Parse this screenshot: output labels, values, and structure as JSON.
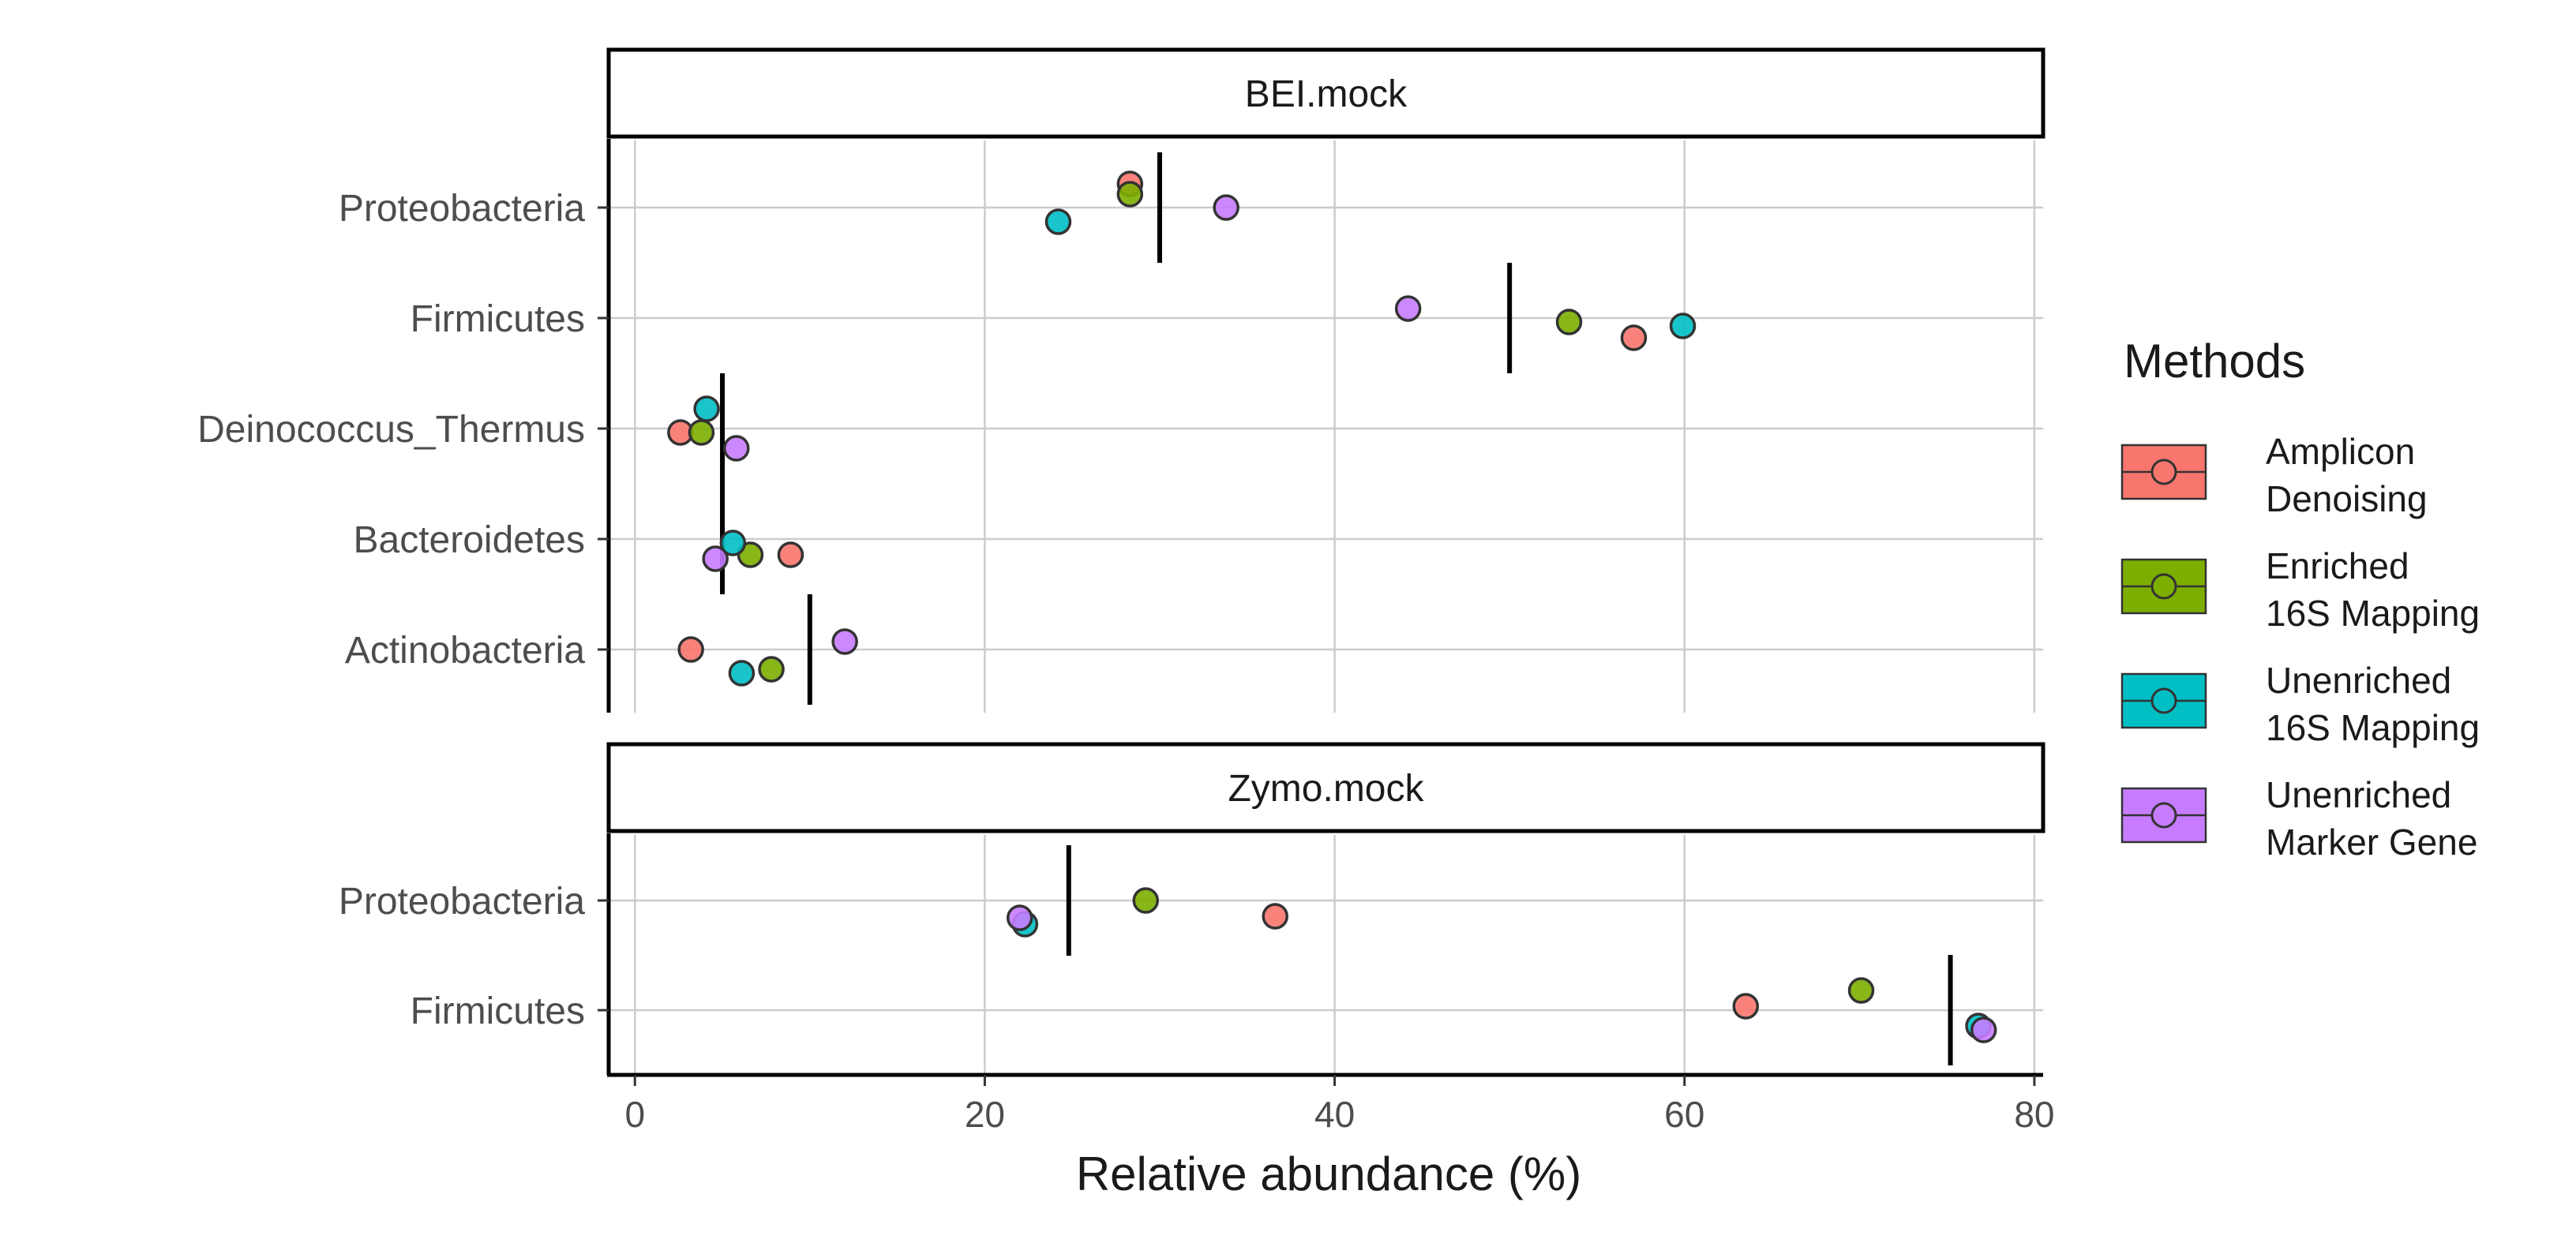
{
  "chart_data": {
    "type": "scatter",
    "xlabel": "Relative abundance (%)",
    "xlim": [
      -1.5,
      80.5
    ],
    "xticks": [
      0,
      20,
      40,
      60,
      80
    ],
    "grid": true,
    "legend": {
      "title": "Methods",
      "position": "right",
      "entries": [
        {
          "key": "amplicon",
          "line1": "Amplicon",
          "line2": "Denoising",
          "color": "#F8766D"
        },
        {
          "key": "enriched",
          "line1": "Enriched",
          "line2": "16S Mapping",
          "color": "#7CAE00"
        },
        {
          "key": "unenriched16s",
          "line1": "Unenriched",
          "line2": "16S Mapping",
          "color": "#00BFC4"
        },
        {
          "key": "marker",
          "line1": "Unenriched",
          "line2": "Marker Gene",
          "color": "#C77CFF"
        }
      ]
    },
    "panels": [
      {
        "strip": "BEI.mock",
        "categories": [
          "Proteobacteria",
          "Firmicutes",
          "Deinococcus_Thermus",
          "Bacteroidetes",
          "Actinobacteria"
        ],
        "expected": [
          30,
          50,
          5,
          5,
          10
        ],
        "points": [
          {
            "category": "Proteobacteria",
            "method": "amplicon",
            "x": 28.3
          },
          {
            "category": "Proteobacteria",
            "method": "enriched",
            "x": 28.3
          },
          {
            "category": "Proteobacteria",
            "method": "unenriched16s",
            "x": 24.2
          },
          {
            "category": "Proteobacteria",
            "method": "marker",
            "x": 33.8
          },
          {
            "category": "Firmicutes",
            "method": "amplicon",
            "x": 57.1
          },
          {
            "category": "Firmicutes",
            "method": "enriched",
            "x": 53.4
          },
          {
            "category": "Firmicutes",
            "method": "unenriched16s",
            "x": 59.9
          },
          {
            "category": "Firmicutes",
            "method": "marker",
            "x": 44.2
          },
          {
            "category": "Deinococcus_Thermus",
            "method": "amplicon",
            "x": 2.6
          },
          {
            "category": "Deinococcus_Thermus",
            "method": "enriched",
            "x": 3.8
          },
          {
            "category": "Deinococcus_Thermus",
            "method": "unenriched16s",
            "x": 4.1
          },
          {
            "category": "Deinococcus_Thermus",
            "method": "marker",
            "x": 5.8
          },
          {
            "category": "Bacteroidetes",
            "method": "amplicon",
            "x": 8.9
          },
          {
            "category": "Bacteroidetes",
            "method": "enriched",
            "x": 6.6
          },
          {
            "category": "Bacteroidetes",
            "method": "unenriched16s",
            "x": 5.6
          },
          {
            "category": "Bacteroidetes",
            "method": "marker",
            "x": 4.6
          },
          {
            "category": "Actinobacteria",
            "method": "amplicon",
            "x": 3.2
          },
          {
            "category": "Actinobacteria",
            "method": "enriched",
            "x": 7.8
          },
          {
            "category": "Actinobacteria",
            "method": "unenriched16s",
            "x": 6.1
          },
          {
            "category": "Actinobacteria",
            "method": "marker",
            "x": 12.0
          }
        ]
      },
      {
        "strip": "Zymo.mock",
        "categories": [
          "Proteobacteria",
          "Firmicutes"
        ],
        "expected": [
          24.8,
          75.2
        ],
        "points": [
          {
            "category": "Proteobacteria",
            "method": "amplicon",
            "x": 36.6
          },
          {
            "category": "Proteobacteria",
            "method": "enriched",
            "x": 29.2
          },
          {
            "category": "Proteobacteria",
            "method": "unenriched16s",
            "x": 22.3
          },
          {
            "category": "Proteobacteria",
            "method": "marker",
            "x": 22.0
          },
          {
            "category": "Firmicutes",
            "method": "amplicon",
            "x": 63.5
          },
          {
            "category": "Firmicutes",
            "method": "enriched",
            "x": 70.1
          },
          {
            "category": "Firmicutes",
            "method": "unenriched16s",
            "x": 76.8
          },
          {
            "category": "Firmicutes",
            "method": "marker",
            "x": 77.1
          }
        ]
      }
    ]
  }
}
